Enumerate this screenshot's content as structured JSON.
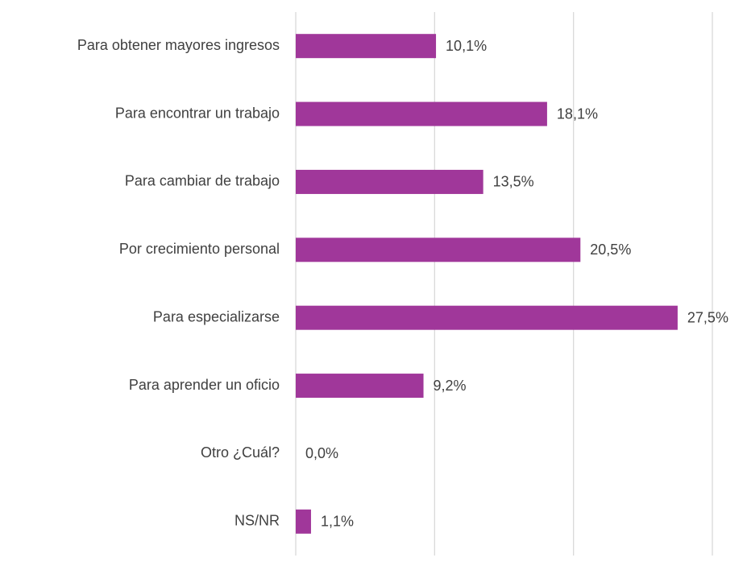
{
  "chart_data": {
    "type": "bar",
    "orientation": "horizontal",
    "categories": [
      "Para obtener mayores ingresos",
      "Para encontrar un trabajo",
      "Para cambiar de trabajo",
      "Por crecimiento personal",
      "Para especializarse",
      "Para aprender un oficio",
      "Otro ¿Cuál?",
      "NS/NR"
    ],
    "values": [
      10.1,
      18.1,
      13.5,
      20.5,
      27.5,
      9.2,
      0.0,
      1.1
    ],
    "value_labels": [
      "10,1%",
      "18,1%",
      "13,5%",
      "20,5%",
      "27,5%",
      "9,2%",
      "0,0%",
      "1,1%"
    ],
    "color": "#a0379a",
    "xlim": [
      0,
      30
    ],
    "xticks": [
      0,
      10,
      20,
      30
    ],
    "grid": true
  }
}
